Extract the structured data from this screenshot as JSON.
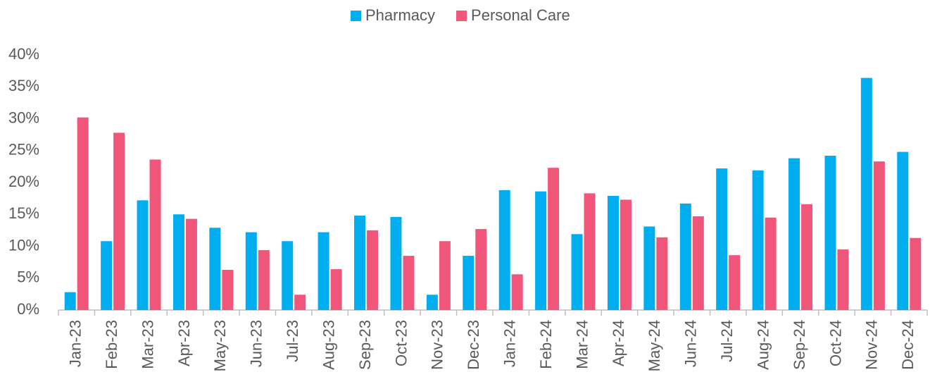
{
  "chart_data": {
    "type": "bar",
    "categories": [
      "Jan-23",
      "Feb-23",
      "Mar-23",
      "Apr-23",
      "May-23",
      "Jun-23",
      "Jul-23",
      "Aug-23",
      "Sep-23",
      "Oct-23",
      "Nov-23",
      "Dec-23",
      "Jan-24",
      "Feb-24",
      "Mar-24",
      "Apr-24",
      "May-24",
      "Jun-24",
      "Jul-24",
      "Aug-24",
      "Sep-24",
      "Oct-24",
      "Nov-24",
      "Dec-24"
    ],
    "series": [
      {
        "name": "Pharmacy",
        "color": "#00aeef",
        "values": [
          2.8,
          10.8,
          17.2,
          15.0,
          12.9,
          12.2,
          10.8,
          12.2,
          14.8,
          14.6,
          2.4,
          8.5,
          18.8,
          18.6,
          11.9,
          17.9,
          13.1,
          16.7,
          22.2,
          21.9,
          23.8,
          24.2,
          36.4,
          24.8
        ]
      },
      {
        "name": "Personal Care",
        "color": "#f0557a",
        "values": [
          30.2,
          27.8,
          23.6,
          14.3,
          6.3,
          9.4,
          2.4,
          6.4,
          12.5,
          8.5,
          10.8,
          12.7,
          5.6,
          22.3,
          18.3,
          17.3,
          11.4,
          14.7,
          8.6,
          14.5,
          16.6,
          9.5,
          23.3,
          11.3
        ]
      }
    ],
    "ylim": [
      0,
      40
    ],
    "yticks": [
      {
        "value": 0,
        "label": "0%"
      },
      {
        "value": 5,
        "label": "5%"
      },
      {
        "value": 10,
        "label": "10%"
      },
      {
        "value": 15,
        "label": "15%"
      },
      {
        "value": 20,
        "label": "20%"
      },
      {
        "value": 25,
        "label": "25%"
      },
      {
        "value": 30,
        "label": "30%"
      },
      {
        "value": 35,
        "label": "35%"
      },
      {
        "value": 40,
        "label": "40%"
      }
    ],
    "grid": false,
    "legend": "top"
  }
}
